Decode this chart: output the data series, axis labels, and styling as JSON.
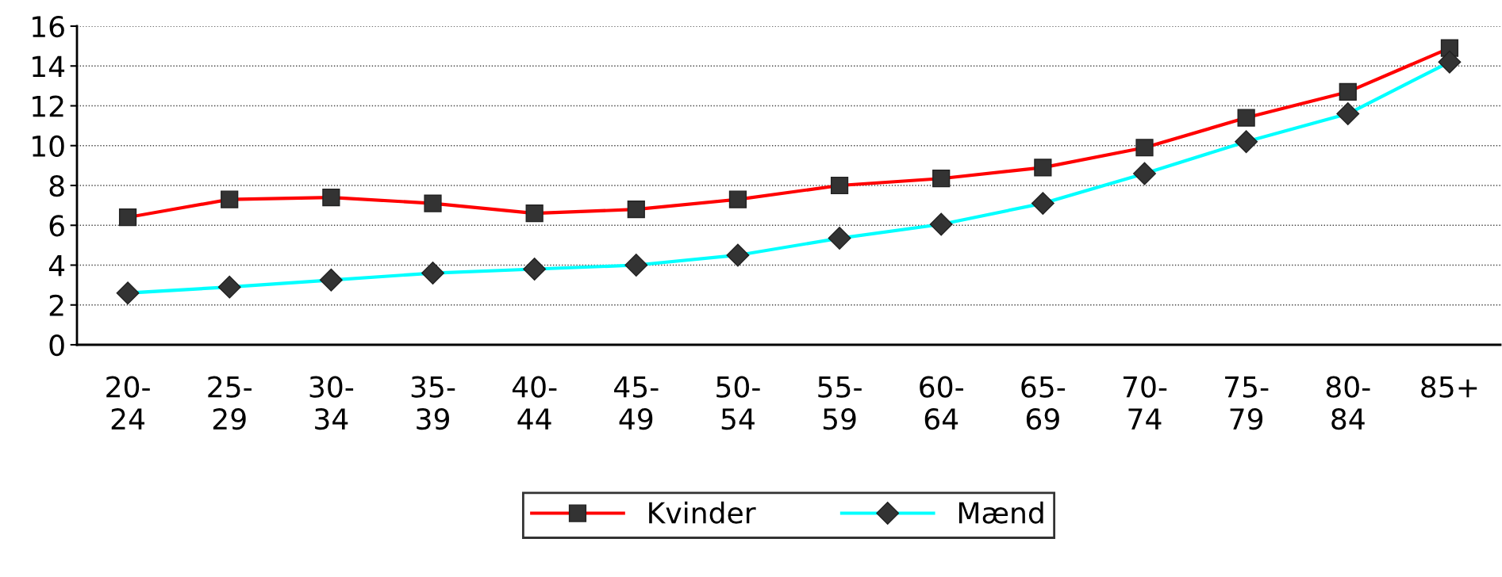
{
  "chart_data": {
    "type": "line",
    "categories": [
      "20-\n24",
      "25-\n29",
      "30-\n34",
      "35-\n39",
      "40-\n44",
      "45-\n49",
      "50-\n54",
      "55-\n59",
      "60-\n64",
      "65-\n69",
      "70-\n74",
      "75-\n79",
      "80-\n84",
      "85+"
    ],
    "series": [
      {
        "name": "Kvinder",
        "color": "#ff0000",
        "marker": "square",
        "values": [
          6.4,
          7.3,
          7.4,
          7.1,
          6.6,
          6.8,
          7.3,
          8.0,
          8.35,
          8.9,
          9.9,
          11.4,
          12.7,
          14.9
        ]
      },
      {
        "name": "Mænd",
        "color": "#00ffff",
        "marker": "diamond",
        "values": [
          2.6,
          2.9,
          3.25,
          3.6,
          3.8,
          4.0,
          4.5,
          5.35,
          6.05,
          7.1,
          8.6,
          10.2,
          11.6,
          14.2
        ]
      }
    ],
    "ylim": [
      0,
      16
    ],
    "yticks": [
      0,
      2,
      4,
      6,
      8,
      10,
      12,
      14,
      16
    ],
    "grid": "y",
    "legend": "bottom"
  }
}
